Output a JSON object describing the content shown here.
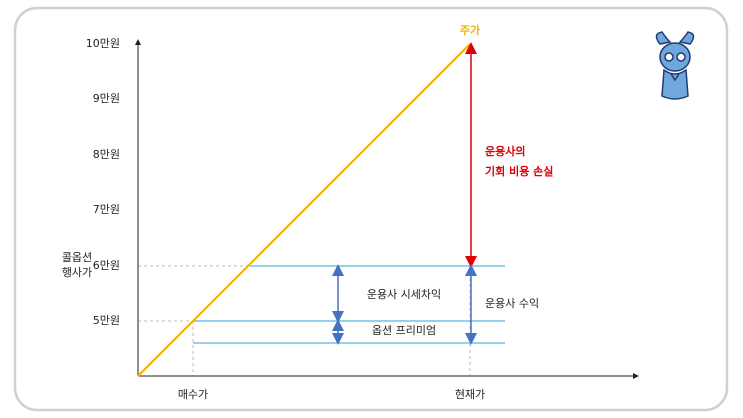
{
  "y_axis": {
    "labels": [
      "10만원",
      "9만원",
      "8만원",
      "7만원",
      "6만원",
      "5만원"
    ],
    "title": [
      "콜옵션",
      "행사가"
    ]
  },
  "x_axis": {
    "labels": [
      "매수가",
      "현재가"
    ]
  },
  "line_label": "주가",
  "annotations": {
    "opportunity_loss": [
      "운용사의",
      "기회 비용 손실"
    ],
    "price_gain": "운용사 시세차익",
    "premium": "옵션 프리미엄",
    "profit": "운용사 수익"
  }
}
